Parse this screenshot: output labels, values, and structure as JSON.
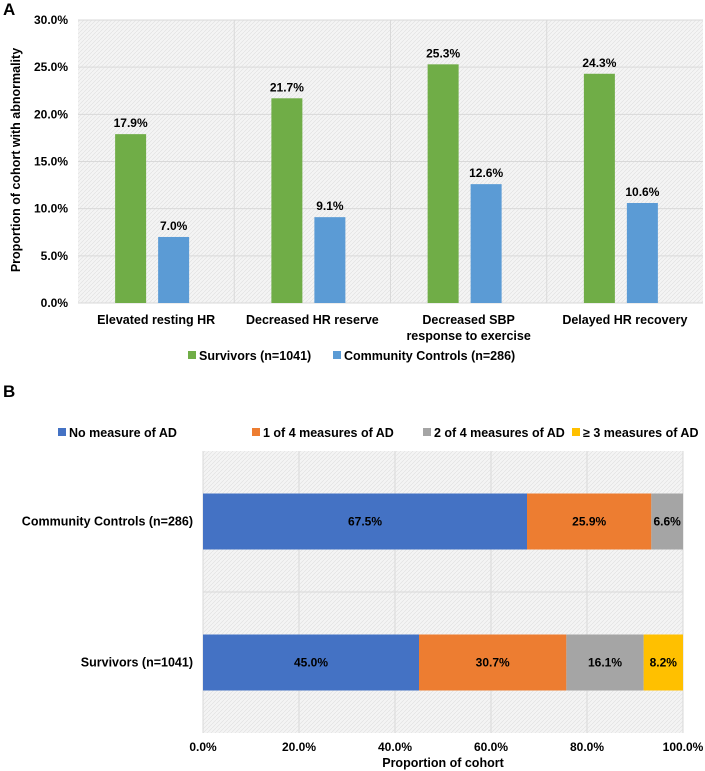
{
  "colors": {
    "survivors": "#70ad47",
    "controls": "#5b9bd5",
    "no_ad": "#4472c4",
    "ad1": "#ed7d31",
    "ad2": "#a5a5a5",
    "ad3": "#ffc000",
    "plot_bg": "#f2f2f2",
    "grid": "#d9d9d9"
  },
  "chart_data": [
    {
      "panel": "A",
      "type": "bar",
      "ylabel": "Proportion of cohort with abnormality",
      "xlabel": "",
      "ylim": [
        0,
        30
      ],
      "y_ticks": [
        "0.0%",
        "5.0%",
        "10.0%",
        "15.0%",
        "20.0%",
        "25.0%",
        "30.0%"
      ],
      "categories": [
        [
          "Elevated resting HR"
        ],
        [
          "Decreased HR reserve"
        ],
        [
          "Decreased SBP",
          "response to exercise"
        ],
        [
          "Delayed HR recovery"
        ]
      ],
      "series": [
        {
          "name": "Survivors (n=1041)",
          "color": "#70ad47",
          "values": [
            17.9,
            21.7,
            25.3,
            24.3
          ],
          "labels": [
            "17.9%",
            "21.7%",
            "25.3%",
            "24.3%"
          ]
        },
        {
          "name": "Community Controls (n=286)",
          "color": "#5b9bd5",
          "values": [
            7.0,
            9.1,
            12.6,
            10.6
          ],
          "labels": [
            "7.0%",
            "9.1%",
            "12.6%",
            "10.6%"
          ]
        }
      ],
      "legend_position": "bottom",
      "grid": true
    },
    {
      "panel": "B",
      "type": "bar",
      "orientation": "horizontal-stacked",
      "xlabel": "Proportion of cohort",
      "ylabel": "",
      "xlim": [
        0,
        100
      ],
      "x_ticks": [
        "0.0%",
        "20.0%",
        "40.0%",
        "60.0%",
        "80.0%",
        "100.0%"
      ],
      "categories": [
        "Community Controls (n=286)",
        "Survivors (n=1041)"
      ],
      "series": [
        {
          "name": "No measure of AD",
          "color": "#4472c4",
          "values": [
            67.5,
            45.0
          ],
          "labels": [
            "67.5%",
            "45.0%"
          ]
        },
        {
          "name": "1 of 4 measures of AD",
          "color": "#ed7d31",
          "values": [
            25.9,
            30.7
          ],
          "labels": [
            "25.9%",
            "30.7%"
          ]
        },
        {
          "name": "2 of 4 measures of AD",
          "color": "#a5a5a5",
          "values": [
            6.6,
            16.1
          ],
          "labels": [
            "6.6%",
            "16.1%"
          ]
        },
        {
          "name": "≥ 3 measures of AD",
          "color": "#ffc000",
          "values": [
            0,
            8.2
          ],
          "labels": [
            "",
            "8.2%"
          ]
        }
      ],
      "legend_position": "top",
      "grid": true
    }
  ]
}
